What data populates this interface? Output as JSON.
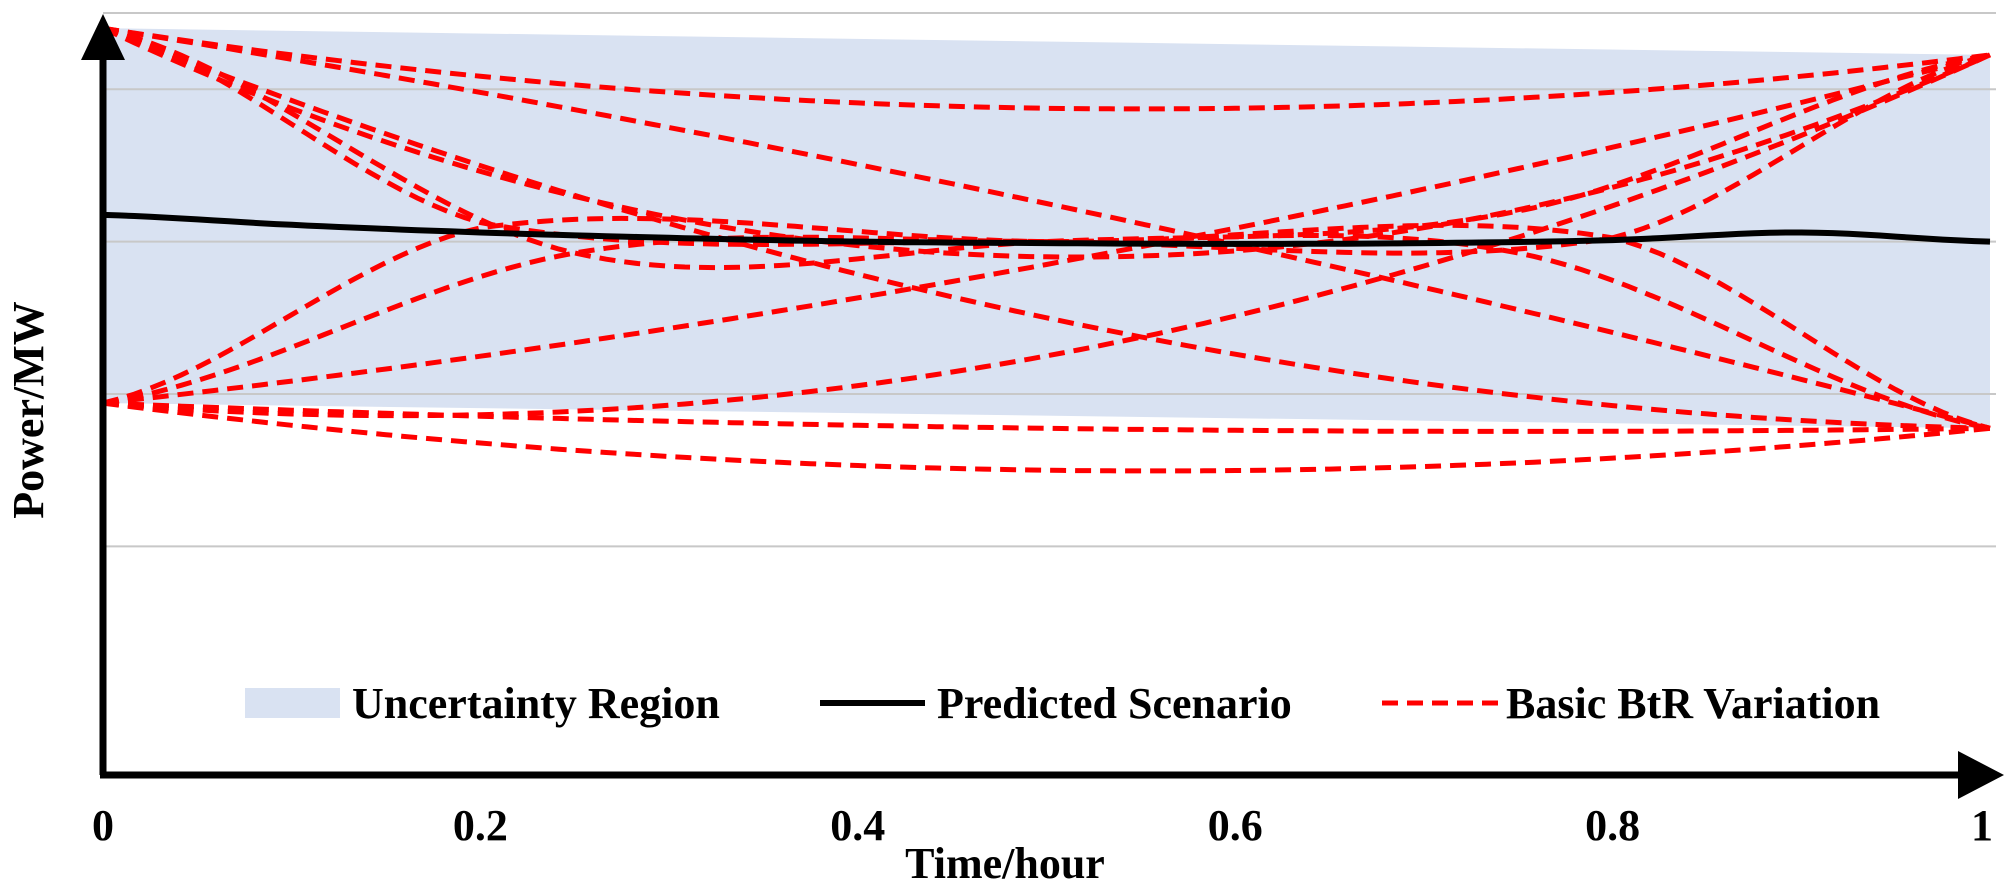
{
  "chart_data": {
    "type": "line",
    "xlabel": "Time/hour",
    "ylabel": "Power/MW",
    "xlim": [
      0,
      1
    ],
    "ylim": [
      0,
      1
    ],
    "x_ticks": [
      "0",
      "0.2",
      "0.4",
      "0.6",
      "0.8",
      "1"
    ],
    "x_tick_values": [
      0,
      0.2,
      0.4,
      0.6,
      0.8,
      1
    ],
    "y_gridlines": [
      0.3,
      0.5,
      0.7,
      0.9,
      1.0
    ],
    "grid": true,
    "legend_position": "bottom",
    "colors": {
      "region": "#d9e2f2",
      "predicted": "#000000",
      "variation": "#ff0000",
      "grid": "#c8c8c8",
      "axis": "#000000"
    },
    "uncertainty_region": {
      "name": "Uncertainty Region",
      "upper": [
        [
          0,
          0.98
        ],
        [
          1,
          0.945
        ]
      ],
      "lower": [
        [
          0,
          0.488
        ],
        [
          1,
          0.455
        ]
      ]
    },
    "predicted": {
      "name": "Predicted Scenario",
      "x": [
        0,
        0.1,
        0.2,
        0.3,
        0.4,
        0.5,
        0.6,
        0.7,
        0.8,
        0.9,
        1
      ],
      "y": [
        0.735,
        0.722,
        0.712,
        0.705,
        0.7,
        0.698,
        0.697,
        0.698,
        0.702,
        0.712,
        0.7
      ]
    },
    "variation_name": "Basic BtR Variation",
    "variations": [
      {
        "x": [
          0,
          0.5,
          1
        ],
        "y": [
          0.98,
          0.68,
          0.945
        ]
      },
      {
        "x": [
          0,
          0.5,
          1
        ],
        "y": [
          0.98,
          0.875,
          0.945
        ]
      },
      {
        "x": [
          0,
          0.5,
          1
        ],
        "y": [
          0.98,
          0.75,
          0.455
        ]
      },
      {
        "x": [
          0,
          0.5,
          1
        ],
        "y": [
          0.98,
          0.6,
          0.455
        ]
      },
      {
        "x": [
          0,
          0.5,
          1
        ],
        "y": [
          0.488,
          0.67,
          0.945
        ]
      },
      {
        "x": [
          0,
          0.5,
          1
        ],
        "y": [
          0.488,
          0.55,
          0.945
        ]
      },
      {
        "x": [
          0,
          0.5,
          1
        ],
        "y": [
          0.488,
          0.455,
          0.455
        ]
      },
      {
        "x": [
          0,
          0.5,
          1
        ],
        "y": [
          0.488,
          0.4,
          0.455
        ]
      },
      {
        "x": [
          0,
          0.25,
          0.5,
          0.75,
          1
        ],
        "y": [
          0.98,
          0.685,
          0.7,
          0.74,
          0.945
        ]
      },
      {
        "x": [
          0,
          0.25,
          0.5,
          0.75,
          1
        ],
        "y": [
          0.488,
          0.685,
          0.7,
          0.685,
          0.455
        ]
      },
      {
        "x": [
          0,
          0.2,
          0.5,
          0.8,
          1
        ],
        "y": [
          0.98,
          0.725,
          0.7,
          0.705,
          0.455
        ]
      },
      {
        "x": [
          0,
          0.2,
          0.5,
          0.8,
          1
        ],
        "y": [
          0.488,
          0.718,
          0.7,
          0.705,
          0.945
        ]
      }
    ]
  }
}
